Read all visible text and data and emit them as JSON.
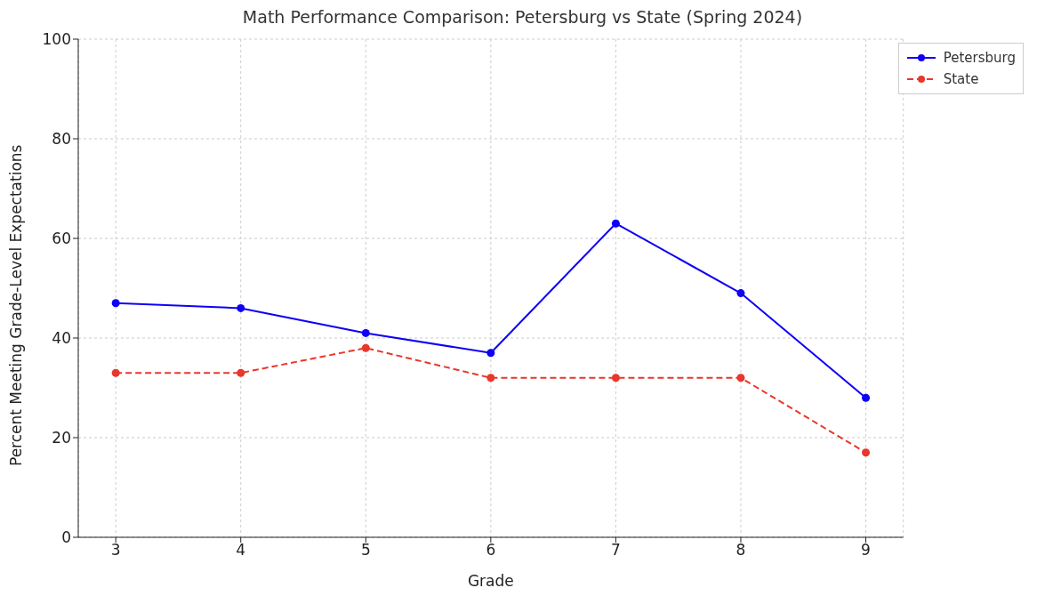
{
  "chart_data": {
    "type": "line",
    "title": "Math Performance Comparison: Petersburg vs State (Spring 2024)",
    "xlabel": "Grade",
    "ylabel": "Percent Meeting Grade-Level Expectations",
    "x": [
      3,
      4,
      5,
      6,
      7,
      8,
      9
    ],
    "xlim": [
      2.7,
      9.3
    ],
    "xticks": [
      3,
      4,
      5,
      6,
      7,
      8,
      9
    ],
    "ylim": [
      0,
      100
    ],
    "yticks": [
      0,
      20,
      40,
      60,
      80,
      100
    ],
    "grid": true,
    "legend": "top right",
    "marker": "circle",
    "series": [
      {
        "name": "Petersburg",
        "color": "#0f00f5",
        "values": [
          47,
          46,
          41,
          37,
          63,
          49,
          28
        ],
        "line_style": "solid"
      },
      {
        "name": "State",
        "color": "#e8372c",
        "values": [
          33,
          33,
          38,
          32,
          32,
          32,
          17
        ],
        "line_style": "dashed"
      }
    ]
  }
}
